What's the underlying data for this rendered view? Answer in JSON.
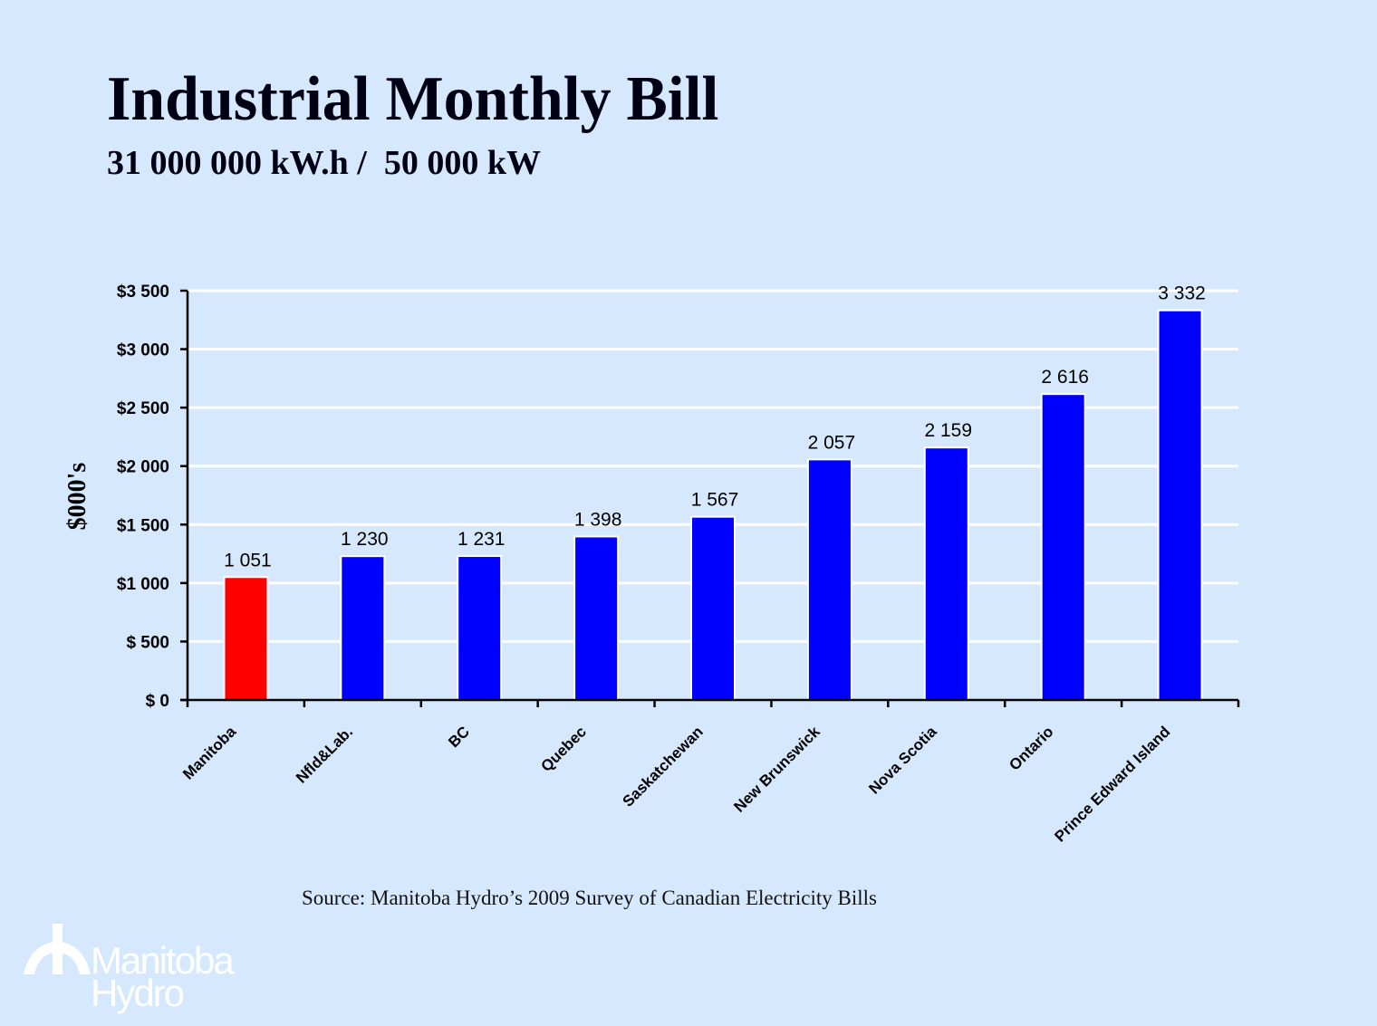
{
  "slide": {
    "title": "Industrial Monthly Bill",
    "subtitle": "31 000 000 kW.h /  50 000 kW",
    "source": "Source: Manitoba Hydro’s 2009 Survey of Canadian Electricity Bills",
    "logo": {
      "icon": "manitoba-hydro-tower-icon",
      "line1": "Manitoba",
      "line2": "Hydro"
    },
    "colors": {
      "background": "#d6e8fd",
      "highlight_bar": "#ff0000",
      "bar": "#0000ff",
      "gridline": "#ffffff",
      "text": "#000000"
    }
  },
  "chart_data": {
    "type": "bar",
    "title": "Industrial Monthly Bill",
    "subtitle": "31 000 000 kW.h /  50 000 kW",
    "xlabel": "",
    "ylabel": "$000's",
    "ylim": [
      0,
      3500
    ],
    "yticks": [
      0,
      500,
      1000,
      1500,
      2000,
      2500,
      3000,
      3500
    ],
    "ytick_labels": [
      "$ 0",
      "$ 500",
      "$1 000",
      "$1 500",
      "$2 000",
      "$2 500",
      "$3 000",
      "$3 500"
    ],
    "grid": true,
    "legend": "none",
    "categories": [
      "Manitoba",
      "Nfld&Lab.",
      "BC",
      "Quebec",
      "Saskatchewan",
      "New Brunswick",
      "Nova Scotia",
      "Ontario",
      "Prince Edward Island"
    ],
    "values": [
      1051,
      1230,
      1231,
      1398,
      1567,
      2057,
      2159,
      2616,
      3332
    ],
    "data_labels": [
      "1 051",
      "1 230",
      "1 231",
      "1 398",
      "1 567",
      "2 057",
      "2 159",
      "2 616",
      "3 332"
    ],
    "highlight": [
      "Manitoba"
    ]
  }
}
